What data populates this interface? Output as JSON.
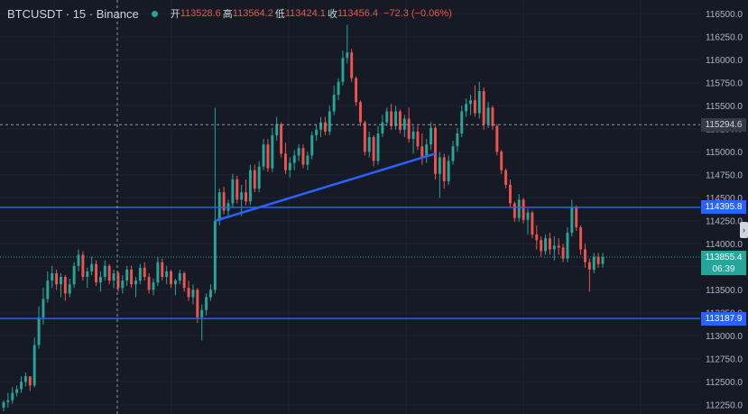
{
  "header": {
    "symbol": "BTCUSDT · 15 · Binance",
    "open_label": "开",
    "open_value": "113528.6",
    "high_label": "高",
    "high_value": "113564.2",
    "low_label": "低",
    "low_value": "113424.1",
    "close_label": "收",
    "close_value": "113456.4",
    "change": "−72.3 (−0.06%)"
  },
  "colors": {
    "background": "#161a25",
    "up": "#26a69a",
    "down": "#ef5350",
    "line": "#2962ff",
    "text": "#b2b5be"
  },
  "price_axis": {
    "ticks": [
      "116500.0",
      "116250.0",
      "116000.0",
      "115750.0",
      "115500.0",
      "115250.0",
      "115000.0",
      "114750.0",
      "114500.0",
      "114250.0",
      "114000.0",
      "113750.0",
      "113500.0",
      "113250.0",
      "113000.0",
      "112750.0",
      "112500.0",
      "112250.0"
    ]
  },
  "tags": {
    "crosshair_price": "115294.6",
    "level_upper": "114395.8",
    "last_price": "113855.4",
    "countdown": "06:39",
    "level_lower": "113187.9"
  },
  "chart_data": {
    "type": "candlestick",
    "ylim": [
      112150,
      116650
    ],
    "horizontal_lines": [
      114395.8,
      113187.9
    ],
    "trendline": [
      [
        0,
        114250
      ],
      [
        1,
        114980
      ]
    ],
    "candles": [
      [
        112220,
        112300,
        112180,
        112280
      ],
      [
        112280,
        112380,
        112220,
        112300
      ],
      [
        112300,
        112440,
        112260,
        112380
      ],
      [
        112380,
        112460,
        112340,
        112420
      ],
      [
        112420,
        112560,
        112380,
        112500
      ],
      [
        112500,
        112600,
        112450,
        112560
      ],
      [
        112560,
        112560,
        112400,
        112460
      ],
      [
        112460,
        112980,
        112440,
        112900
      ],
      [
        112900,
        113320,
        112860,
        113200
      ],
      [
        113200,
        113520,
        113120,
        113400
      ],
      [
        113400,
        113700,
        113360,
        113600
      ],
      [
        113600,
        113760,
        113520,
        113680
      ],
      [
        113680,
        113720,
        113500,
        113560
      ],
      [
        113560,
        113680,
        113420,
        113640
      ],
      [
        113640,
        113660,
        113380,
        113460
      ],
      [
        113460,
        113620,
        113420,
        113560
      ],
      [
        113560,
        113800,
        113520,
        113760
      ],
      [
        113760,
        113940,
        113700,
        113880
      ],
      [
        113880,
        113920,
        113600,
        113640
      ],
      [
        113640,
        113740,
        113520,
        113700
      ],
      [
        113700,
        113860,
        113660,
        113780
      ],
      [
        113780,
        113820,
        113540,
        113580
      ],
      [
        113580,
        113700,
        113480,
        113640
      ],
      [
        113640,
        113820,
        113600,
        113760
      ],
      [
        113760,
        113780,
        113560,
        113600
      ],
      [
        113600,
        113720,
        113520,
        113680
      ],
      [
        113680,
        113700,
        113480,
        113520
      ],
      [
        113520,
        113660,
        113460,
        113600
      ],
      [
        113600,
        113760,
        113540,
        113720
      ],
      [
        113720,
        113760,
        113520,
        113560
      ],
      [
        113560,
        113640,
        113420,
        113600
      ],
      [
        113600,
        113780,
        113560,
        113740
      ],
      [
        113740,
        113800,
        113600,
        113640
      ],
      [
        113640,
        113680,
        113460,
        113500
      ],
      [
        113500,
        113620,
        113440,
        113580
      ],
      [
        113580,
        113860,
        113540,
        113800
      ],
      [
        113800,
        113840,
        113600,
        113640
      ],
      [
        113640,
        113760,
        113560,
        113700
      ],
      [
        113700,
        113720,
        113520,
        113560
      ],
      [
        113560,
        113620,
        113440,
        113600
      ],
      [
        113600,
        113720,
        113560,
        113680
      ],
      [
        113680,
        113700,
        113480,
        113520
      ],
      [
        113520,
        113600,
        113380,
        113420
      ],
      [
        113420,
        113560,
        113340,
        113500
      ],
      [
        113500,
        113520,
        113140,
        113200
      ],
      [
        113200,
        113340,
        112950,
        113280
      ],
      [
        113280,
        113460,
        113220,
        113420
      ],
      [
        113420,
        113560,
        113380,
        113500
      ],
      [
        113500,
        115480,
        113460,
        114250
      ],
      [
        114250,
        114600,
        114200,
        114560
      ],
      [
        114560,
        114620,
        114320,
        114360
      ],
      [
        114360,
        114480,
        114280,
        114440
      ],
      [
        114440,
        114760,
        114400,
        114700
      ],
      [
        114700,
        114740,
        114440,
        114480
      ],
      [
        114480,
        114640,
        114300,
        114560
      ],
      [
        114560,
        114700,
        114420,
        114460
      ],
      [
        114460,
        114860,
        114420,
        114800
      ],
      [
        114800,
        114860,
        114560,
        114600
      ],
      [
        114600,
        114900,
        114560,
        114840
      ],
      [
        114840,
        115140,
        114800,
        115080
      ],
      [
        115080,
        115140,
        114780,
        114820
      ],
      [
        114820,
        115260,
        114780,
        115180
      ],
      [
        115180,
        115380,
        115120,
        115300
      ],
      [
        115300,
        115320,
        114940,
        114980
      ],
      [
        114980,
        115100,
        114760,
        114800
      ],
      [
        114800,
        114940,
        114720,
        114880
      ],
      [
        114880,
        115020,
        114800,
        114960
      ],
      [
        114960,
        115080,
        114900,
        115040
      ],
      [
        115040,
        115080,
        114820,
        114860
      ],
      [
        114860,
        115000,
        114800,
        114960
      ],
      [
        114960,
        115220,
        114920,
        115180
      ],
      [
        115180,
        115300,
        115120,
        115240
      ],
      [
        115240,
        115380,
        115160,
        115320
      ],
      [
        115320,
        115380,
        115180,
        115220
      ],
      [
        115220,
        115500,
        115180,
        115440
      ],
      [
        115440,
        115720,
        115400,
        115620
      ],
      [
        115620,
        115800,
        115560,
        115760
      ],
      [
        115760,
        116100,
        115720,
        116020
      ],
      [
        116020,
        116380,
        115960,
        116080
      ],
      [
        116080,
        116120,
        115760,
        115800
      ],
      [
        115800,
        115820,
        115500,
        115540
      ],
      [
        115540,
        115560,
        115280,
        115320
      ],
      [
        115320,
        115340,
        114960,
        115000
      ],
      [
        115000,
        115220,
        114940,
        115160
      ],
      [
        115160,
        115180,
        114840,
        114900
      ],
      [
        114900,
        115280,
        114860,
        115200
      ],
      [
        115200,
        115400,
        115160,
        115320
      ],
      [
        115320,
        115480,
        115280,
        115440
      ],
      [
        115440,
        115520,
        115240,
        115280
      ],
      [
        115280,
        115500,
        115240,
        115440
      ],
      [
        115440,
        115460,
        115200,
        115240
      ],
      [
        115240,
        115400,
        115160,
        115360
      ],
      [
        115360,
        115480,
        115100,
        115140
      ],
      [
        115140,
        115280,
        114980,
        115220
      ],
      [
        115220,
        115280,
        115020,
        115060
      ],
      [
        115060,
        115200,
        114860,
        114940
      ],
      [
        114940,
        115140,
        114880,
        115080
      ],
      [
        115080,
        115320,
        115020,
        115260
      ],
      [
        115260,
        115280,
        114700,
        114760
      ],
      [
        114760,
        115000,
        114500,
        114940
      ],
      [
        114940,
        114980,
        114600,
        114680
      ],
      [
        114680,
        114960,
        114640,
        114900
      ],
      [
        114900,
        115120,
        114860,
        115060
      ],
      [
        115060,
        115260,
        115000,
        115200
      ],
      [
        115200,
        115500,
        115160,
        115440
      ],
      [
        115440,
        115580,
        115380,
        115520
      ],
      [
        115520,
        115620,
        115400,
        115560
      ],
      [
        115560,
        115720,
        115380,
        115420
      ],
      [
        115420,
        115760,
        115360,
        115660
      ],
      [
        115660,
        115700,
        115240,
        115300
      ],
      [
        115300,
        115540,
        115260,
        115480
      ],
      [
        115480,
        115500,
        115240,
        115280
      ],
      [
        115280,
        115300,
        114960,
        115000
      ],
      [
        115000,
        115020,
        114760,
        114800
      ],
      [
        114800,
        114820,
        114600,
        114640
      ],
      [
        114640,
        114700,
        114400,
        114440
      ],
      [
        114440,
        114460,
        114240,
        114280
      ],
      [
        114280,
        114540,
        114240,
        114480
      ],
      [
        114480,
        114500,
        114220,
        114260
      ],
      [
        114260,
        114380,
        114100,
        114340
      ],
      [
        114340,
        114360,
        114060,
        114100
      ],
      [
        114100,
        114200,
        113940,
        114040
      ],
      [
        114040,
        114080,
        113860,
        113920
      ],
      [
        113920,
        114100,
        113880,
        114060
      ],
      [
        114060,
        114120,
        113880,
        113940
      ],
      [
        113940,
        114080,
        113820,
        113980
      ],
      [
        113980,
        114060,
        113880,
        113960
      ],
      [
        113960,
        114000,
        113800,
        113840
      ],
      [
        113840,
        114180,
        113800,
        114120
      ],
      [
        114120,
        114480,
        114080,
        114400
      ],
      [
        114400,
        114420,
        114140,
        114180
      ],
      [
        114180,
        114200,
        113880,
        113940
      ],
      [
        113940,
        114000,
        113740,
        113800
      ],
      [
        113800,
        113840,
        113480,
        113720
      ],
      [
        113720,
        113900,
        113680,
        113860
      ],
      [
        113860,
        113900,
        113740,
        113780
      ],
      [
        113780,
        113900,
        113740,
        113855.4
      ]
    ]
  }
}
